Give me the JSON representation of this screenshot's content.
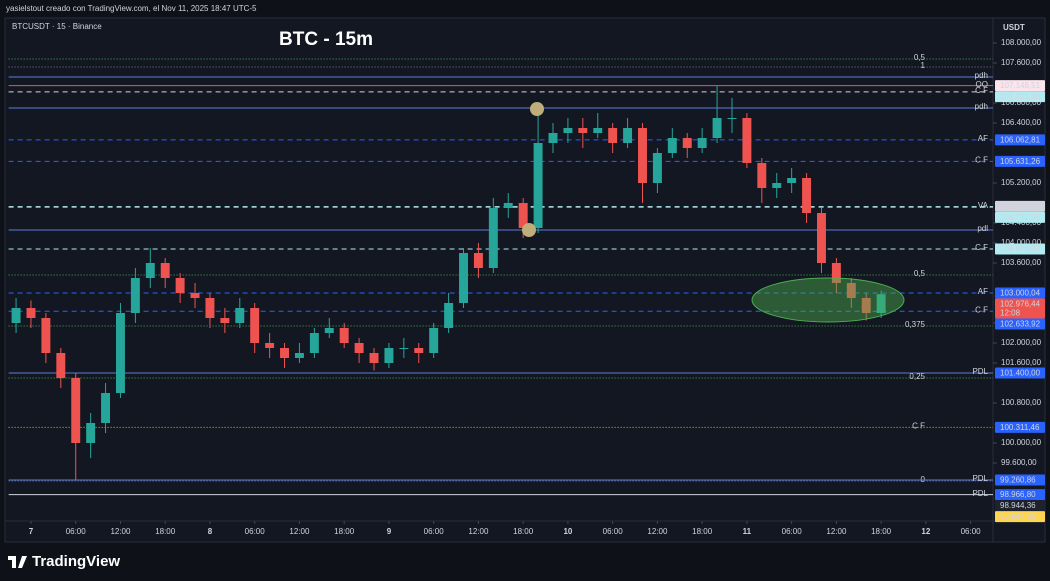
{
  "header": {
    "caption": "yasielstout creado con TradingView.com, el Nov 11, 2025 18:47 UTC-5",
    "symbol": "BTCUSDT · 15 · Binance",
    "brand": "TradingView"
  },
  "chart_data": {
    "type": "candlestick",
    "title": "BTC - 15m",
    "currency_label": "USDT",
    "up_color": "#26a69a",
    "down_color": "#ef5350",
    "grid": false,
    "xlim": [
      -0.5,
      65.5
    ],
    "xticks": [
      {
        "value": 1,
        "label": "7"
      },
      {
        "value": 4,
        "label": "06:00"
      },
      {
        "value": 7,
        "label": "12:00"
      },
      {
        "value": 10,
        "label": "18:00"
      },
      {
        "value": 13,
        "label": "8"
      },
      {
        "value": 16,
        "label": "06:00"
      },
      {
        "value": 19,
        "label": "12:00"
      },
      {
        "value": 22,
        "label": "18:00"
      },
      {
        "value": 25,
        "label": "9"
      },
      {
        "value": 28,
        "label": "06:00"
      },
      {
        "value": 31,
        "label": "12:00"
      },
      {
        "value": 34,
        "label": "18:00"
      },
      {
        "value": 37,
        "label": "10"
      },
      {
        "value": 40,
        "label": "06:00"
      },
      {
        "value": 43,
        "label": "12:00"
      },
      {
        "value": 46,
        "label": "18:00"
      },
      {
        "value": 49,
        "label": "11"
      },
      {
        "value": 52,
        "label": "06:00"
      },
      {
        "value": 55,
        "label": "12:00"
      },
      {
        "value": 58,
        "label": "18:00"
      },
      {
        "value": 61,
        "label": "12"
      },
      {
        "value": 64,
        "label": "06:00"
      }
    ],
    "ylim": [
      98440,
      108500
    ],
    "yticks": [
      {
        "value": 108000,
        "label": "108.000,00"
      },
      {
        "value": 107600,
        "label": "107.600,00"
      },
      {
        "value": 106800,
        "label": "106.800,00"
      },
      {
        "value": 106400,
        "label": "106.400,00"
      },
      {
        "value": 105200,
        "label": "105.200,00"
      },
      {
        "value": 104400,
        "label": "104.400,00"
      },
      {
        "value": 104000,
        "label": "104.000,00"
      },
      {
        "value": 103600,
        "label": "103.600,00"
      },
      {
        "value": 102400,
        "label": "102.400,00"
      },
      {
        "value": 102000,
        "label": "102.000,00"
      },
      {
        "value": 101600,
        "label": "101.600,00"
      },
      {
        "value": 100800,
        "label": "100.800,00"
      },
      {
        "value": 100000,
        "label": "100.000,00"
      },
      {
        "value": 99600,
        "label": "99.600,00"
      }
    ],
    "candles": [
      [
        102400,
        102900,
        102200,
        102700
      ],
      [
        102700,
        102850,
        102300,
        102500
      ],
      [
        102500,
        102600,
        101600,
        101800
      ],
      [
        101800,
        101900,
        101100,
        101300
      ],
      [
        101300,
        101400,
        99260,
        100000
      ],
      [
        100000,
        100600,
        99700,
        100400
      ],
      [
        100400,
        101200,
        100200,
        101000
      ],
      [
        101000,
        102800,
        100900,
        102600
      ],
      [
        102600,
        103500,
        102400,
        103300
      ],
      [
        103300,
        103900,
        103100,
        103600
      ],
      [
        103600,
        103700,
        103100,
        103300
      ],
      [
        103300,
        103400,
        102800,
        103000
      ],
      [
        103000,
        103200,
        102700,
        102900
      ],
      [
        102900,
        103000,
        102300,
        102500
      ],
      [
        102500,
        102700,
        102200,
        102400
      ],
      [
        102400,
        102900,
        102300,
        102700
      ],
      [
        102700,
        102800,
        101800,
        102000
      ],
      [
        102000,
        102200,
        101700,
        101900
      ],
      [
        101900,
        102000,
        101500,
        101700
      ],
      [
        101700,
        102000,
        101600,
        101800
      ],
      [
        101800,
        102300,
        101700,
        102200
      ],
      [
        102200,
        102500,
        102100,
        102300
      ],
      [
        102300,
        102400,
        101900,
        102000
      ],
      [
        102000,
        102100,
        101600,
        101800
      ],
      [
        101800,
        101900,
        101450,
        101600
      ],
      [
        101600,
        102000,
        101500,
        101900
      ],
      [
        101900,
        102100,
        101700,
        101900
      ],
      [
        101900,
        102000,
        101600,
        101800
      ],
      [
        101800,
        102400,
        101700,
        102300
      ],
      [
        102300,
        103000,
        102200,
        102800
      ],
      [
        102800,
        103900,
        102700,
        103800
      ],
      [
        103800,
        104000,
        103300,
        103500
      ],
      [
        103500,
        104900,
        103400,
        104700
      ],
      [
        104700,
        105000,
        104500,
        104800
      ],
      [
        104800,
        104900,
        104100,
        104300
      ],
      [
        104300,
        106700,
        104200,
        106000
      ],
      [
        106000,
        106400,
        105800,
        106200
      ],
      [
        106200,
        106500,
        106000,
        106300
      ],
      [
        106300,
        106500,
        105900,
        106200
      ],
      [
        106200,
        106600,
        106100,
        106300
      ],
      [
        106300,
        106400,
        105800,
        106000
      ],
      [
        106000,
        106500,
        105900,
        106300
      ],
      [
        106300,
        106400,
        104800,
        105200
      ],
      [
        105200,
        105900,
        105000,
        105800
      ],
      [
        105800,
        106300,
        105700,
        106100
      ],
      [
        106100,
        106200,
        105700,
        105900
      ],
      [
        105900,
        106300,
        105800,
        106100
      ],
      [
        106100,
        107150,
        106000,
        106500
      ],
      [
        106500,
        106900,
        106200,
        106500
      ],
      [
        106500,
        106600,
        105500,
        105600
      ],
      [
        105600,
        105700,
        104800,
        105100
      ],
      [
        105100,
        105400,
        104900,
        105200
      ],
      [
        105200,
        105500,
        105000,
        105300
      ],
      [
        105300,
        105400,
        104400,
        104600
      ],
      [
        104600,
        104700,
        103400,
        103600
      ],
      [
        103600,
        103700,
        103000,
        103200
      ],
      [
        103200,
        103300,
        102700,
        102900
      ],
      [
        102900,
        103000,
        102450,
        102600
      ],
      [
        102600,
        103050,
        102500,
        102976.44
      ]
    ],
    "levels": [
      {
        "label": "0,5",
        "price": 107680,
        "color": "#4caf50",
        "style": "dotted"
      },
      {
        "label": "1",
        "price": 107520,
        "color": "#787b86",
        "style": "dotted"
      },
      {
        "label": "pdh",
        "price": 107320,
        "color": "#5b7bd8",
        "style": "solid"
      },
      {
        "label": "OO",
        "price": 107146.51,
        "color": "#ef5350",
        "style": "solid"
      },
      {
        "label": "C F",
        "price": 107021.38,
        "color": "#d1d4dc",
        "style": "dashed"
      },
      {
        "label": "pdh",
        "price": 106700,
        "color": "#5b7bd8",
        "style": "solid"
      },
      {
        "label": "AF",
        "price": 106062.81,
        "color": "#2962ff",
        "style": "dashed"
      },
      {
        "label": "C F",
        "price": 105631.26,
        "color": "#2962ff",
        "style": "dashed"
      },
      {
        "label": "VA",
        "price": 104722.95,
        "color": "#b2ebf2",
        "style": "dashed"
      },
      {
        "label": "pdl",
        "price": 104260,
        "color": "#5b7bd8",
        "style": "solid"
      },
      {
        "label": "C F",
        "price": 103879.22,
        "color": "#b2ebf2",
        "style": "dashed"
      },
      {
        "label": "0,5",
        "price": 103360,
        "color": "#4caf50",
        "style": "dotted"
      },
      {
        "label": "AF",
        "price": 103000.04,
        "color": "#2962ff",
        "style": "dashed"
      },
      {
        "label": "C F",
        "price": 102633.92,
        "color": "#2962ff",
        "style": "dashed"
      },
      {
        "label": "0,375",
        "price": 102340,
        "color": "#4caf50",
        "style": "dotted"
      },
      {
        "label": "PDL",
        "price": 101400,
        "color": "#5b7bd8",
        "style": "solid"
      },
      {
        "label": "0,25",
        "price": 101300,
        "color": "#4caf50",
        "style": "dotted"
      },
      {
        "label": "C F",
        "price": 100311.46,
        "color": "#ffb300",
        "style": "dotted"
      },
      {
        "label": "0",
        "price": 99240,
        "color": "#787b86",
        "style": "dotted"
      },
      {
        "label": "PDL",
        "price": 99260.86,
        "color": "#5b7bd8",
        "style": "solid"
      },
      {
        "label": "PDL",
        "price": 98966.8,
        "color": "#d1d4dc",
        "style": "solid"
      }
    ],
    "price_tags": [
      {
        "value": 107146.51,
        "label": "107.146,51",
        "color": "#fce4ec",
        "text_color": "#ef5350"
      },
      {
        "value": 107021.38,
        "label": "107.021,38",
        "color": "#b2ebf2",
        "text_color": "#131722"
      },
      {
        "value": 106062.81,
        "label": "106.062,81",
        "color": "#2962ff",
        "text_color": "#ffffff"
      },
      {
        "value": 105631.26,
        "label": "105.631,26",
        "color": "#2962ff",
        "text_color": "#ffffff"
      },
      {
        "value": 104732.47,
        "label": "104.732,47",
        "color": "#d1d4dc",
        "text_color": "#131722"
      },
      {
        "value": 104722.95,
        "label": "104.722,95",
        "color": "#b2ebf2",
        "text_color": "#131722"
      },
      {
        "value": 103879.22,
        "label": "103.879,22",
        "color": "#b2ebf2",
        "text_color": "#131722"
      },
      {
        "value": 103000.04,
        "label": "103.000,04",
        "color": "#2962ff",
        "text_color": "#ffffff"
      },
      {
        "value": 102976.44,
        "label": "102.976,44",
        "sub": "12:08",
        "color": "#ef5350",
        "text_color": "#ffffff"
      },
      {
        "value": 102633.92,
        "label": "102.633,92",
        "color": "#2962ff",
        "text_color": "#ffffff"
      },
      {
        "value": 101400,
        "label": "101.400,00",
        "color": "#2962ff",
        "text_color": "#ffffff"
      },
      {
        "value": 100311.46,
        "label": "100.311,46",
        "color": "#2962ff",
        "text_color": "#ffffff"
      },
      {
        "value": 99260.86,
        "label": "99.260,86",
        "color": "#2962ff",
        "text_color": "#ffffff"
      },
      {
        "value": 98966.8,
        "label": "98.966,80",
        "color": "#2962ff",
        "text_color": "#ffffff"
      },
      {
        "value": 98944.36,
        "label": "98.944,36",
        "color": "#1e222d",
        "text_color": "#d1d4dc"
      },
      {
        "value": 98944.36,
        "label": "98.944,36",
        "color": "#ffd54f",
        "text_color": "#131722"
      }
    ]
  }
}
